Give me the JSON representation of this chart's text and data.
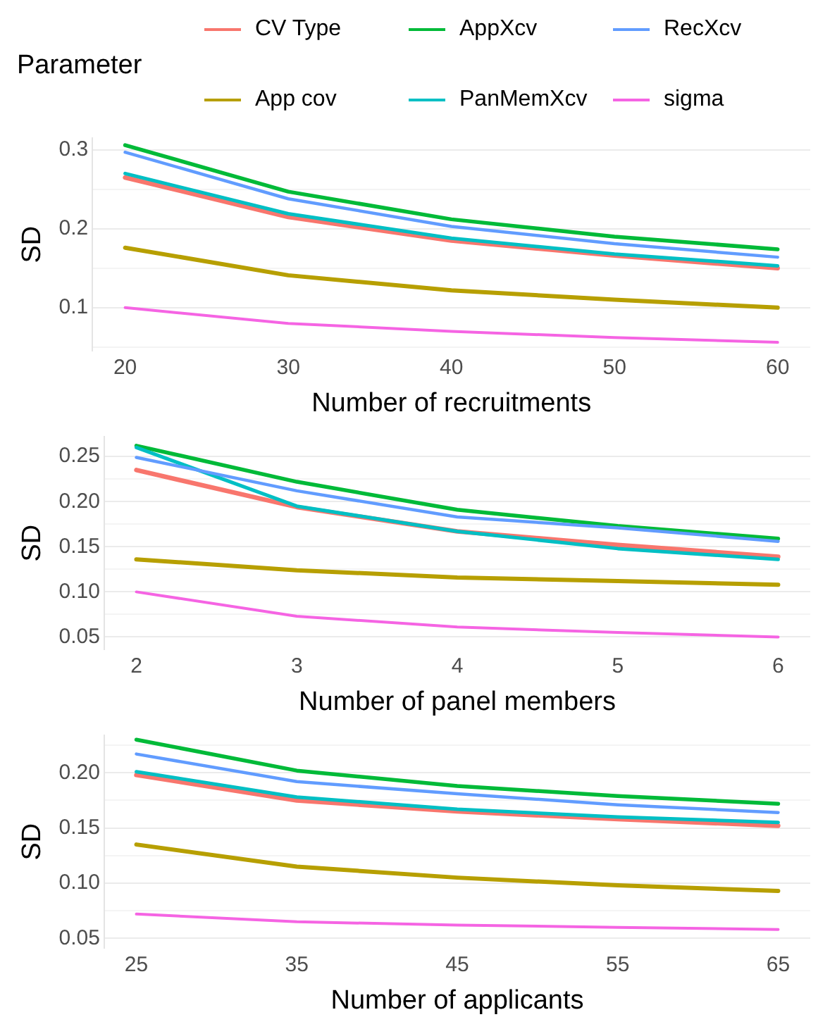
{
  "chart_data": [
    {
      "type": "line",
      "legend_title": "Parameter",
      "legend": "top",
      "xlabel": "Number of recruitments",
      "ylabel": "SD",
      "grid": "y",
      "marker": "none",
      "line_style": "solid",
      "x": [
        20,
        30,
        40,
        50,
        60
      ],
      "xlim": [
        18,
        62
      ],
      "xticks": [
        20,
        30,
        40,
        50,
        60
      ],
      "ylim": [
        0.045,
        0.315
      ],
      "yticks": [
        {
          "value": 0.05,
          "label": null
        },
        0.1,
        {
          "value": 0.15,
          "label": null
        },
        0.2,
        {
          "value": 0.25,
          "label": null
        },
        0.3
      ],
      "series": [
        {
          "name": "CV Type",
          "color": "#f8766d",
          "values": [
            0.265,
            0.215,
            0.185,
            0.166,
            0.15
          ]
        },
        {
          "name": "App cov",
          "color": "#b79f00",
          "values": [
            0.176,
            0.141,
            0.122,
            0.11,
            0.1
          ]
        },
        {
          "name": "AppXcv",
          "color": "#00ba38",
          "values": [
            0.306,
            0.247,
            0.212,
            0.19,
            0.174
          ]
        },
        {
          "name": "PanMemXcv",
          "color": "#00bfc4",
          "values": [
            0.27,
            0.219,
            0.188,
            0.168,
            0.153
          ]
        },
        {
          "name": "RecXcv",
          "color": "#619cff",
          "values": [
            0.297,
            0.238,
            0.203,
            0.181,
            0.164
          ]
        },
        {
          "name": "sigma",
          "color": "#f564e3",
          "values": [
            0.1,
            0.08,
            0.07,
            0.062,
            0.056
          ]
        }
      ]
    },
    {
      "type": "line",
      "xlabel": "Number of panel members",
      "ylabel": "SD",
      "grid": "y",
      "marker": "none",
      "line_style": "solid",
      "x": [
        2,
        3,
        4,
        5,
        6
      ],
      "xlim": [
        1.8,
        6.2
      ],
      "xticks": [
        2,
        3,
        4,
        5,
        6
      ],
      "ylim": [
        0.036,
        0.272
      ],
      "yticks": [
        {
          "value": 0.05,
          "label": "0.05"
        },
        {
          "value": 0.075,
          "label": null
        },
        {
          "value": 0.1,
          "label": "0.10"
        },
        {
          "value": 0.125,
          "label": null
        },
        {
          "value": 0.15,
          "label": "0.15"
        },
        {
          "value": 0.175,
          "label": null
        },
        {
          "value": 0.2,
          "label": "0.20"
        },
        {
          "value": 0.225,
          "label": null
        },
        {
          "value": 0.25,
          "label": "0.25"
        }
      ],
      "series": [
        {
          "color": "#f8766d",
          "values": [
            0.235,
            0.194,
            0.167,
            0.152,
            0.139
          ]
        },
        {
          "color": "#b79f00",
          "values": [
            0.136,
            0.124,
            0.116,
            0.112,
            0.108
          ]
        },
        {
          "color": "#00ba38",
          "values": [
            0.262,
            0.222,
            0.191,
            0.173,
            0.159
          ]
        },
        {
          "color": "#00bfc4",
          "values": [
            0.26,
            0.195,
            0.167,
            0.148,
            0.136
          ]
        },
        {
          "color": "#619cff",
          "values": [
            0.249,
            0.212,
            0.183,
            0.171,
            0.156
          ]
        },
        {
          "color": "#f564e3",
          "values": [
            0.1,
            0.073,
            0.061,
            0.055,
            0.05
          ]
        }
      ]
    },
    {
      "type": "line",
      "xlabel": "Number of applicants",
      "ylabel": "SD",
      "grid": "y",
      "marker": "none",
      "line_style": "solid",
      "x": [
        25,
        35,
        45,
        55,
        65
      ],
      "xlim": [
        23,
        67
      ],
      "xticks": [
        25,
        35,
        45,
        55,
        65
      ],
      "ylim": [
        0.041,
        0.234
      ],
      "yticks": [
        {
          "value": 0.05,
          "label": "0.05"
        },
        {
          "value": 0.075,
          "label": null
        },
        {
          "value": 0.1,
          "label": "0.10"
        },
        {
          "value": 0.125,
          "label": null
        },
        {
          "value": 0.15,
          "label": "0.15"
        },
        {
          "value": 0.175,
          "label": null
        },
        {
          "value": 0.2,
          "label": "0.20"
        },
        {
          "value": 0.225,
          "label": null
        }
      ],
      "series": [
        {
          "color": "#f8766d",
          "values": [
            0.198,
            0.175,
            0.165,
            0.158,
            0.152
          ]
        },
        {
          "color": "#b79f00",
          "values": [
            0.135,
            0.115,
            0.105,
            0.098,
            0.093
          ]
        },
        {
          "color": "#00ba38",
          "values": [
            0.23,
            0.202,
            0.188,
            0.179,
            0.172
          ]
        },
        {
          "color": "#00bfc4",
          "values": [
            0.201,
            0.178,
            0.167,
            0.16,
            0.155
          ]
        },
        {
          "color": "#619cff",
          "values": [
            0.217,
            0.192,
            0.181,
            0.171,
            0.164
          ]
        },
        {
          "color": "#f564e3",
          "values": [
            0.072,
            0.065,
            0.062,
            0.06,
            0.058
          ]
        }
      ]
    }
  ]
}
